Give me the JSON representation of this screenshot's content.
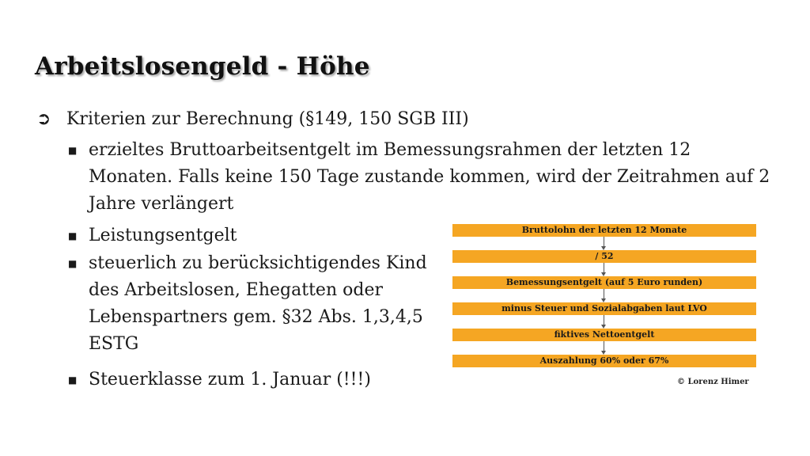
{
  "slide": {
    "title": "Arbeitslosengeld - Höhe",
    "main_point": {
      "icon": "arrow-right-icon",
      "text": "Kriterien zur Berechnung (§149, 150 SGB III)"
    },
    "bullets": [
      "erzieltes Bruttoarbeitsentgelt im Bemessungsrahmen der letzten 12 Monaten. Falls keine 150 Tage zustande kommen, wird der Zeitrahmen auf 2 Jahre verlängert",
      "Leistungsentgelt",
      "steuerlich zu berücksichtigendes Kind des Arbeitslosen, Ehegatten oder Lebenspartners gem. §32 Abs. 1,3,4,5 ESTG",
      "Steuerklasse zum 1. Januar (!!!)"
    ],
    "bullet_icon": "square-bullet-icon"
  },
  "flowchart": {
    "steps": [
      "Bruttolohn der letzten 12 Monate",
      "/ 52",
      "Bemessungsentgelt (auf 5 Euro runden)",
      "minus Steuer und Sozialabgaben laut LVO",
      "fiktives Nettoentgelt",
      "Auszahlung 60% oder 67%"
    ],
    "step_color": "#f5a623",
    "copyright": "© Lorenz Himer"
  }
}
